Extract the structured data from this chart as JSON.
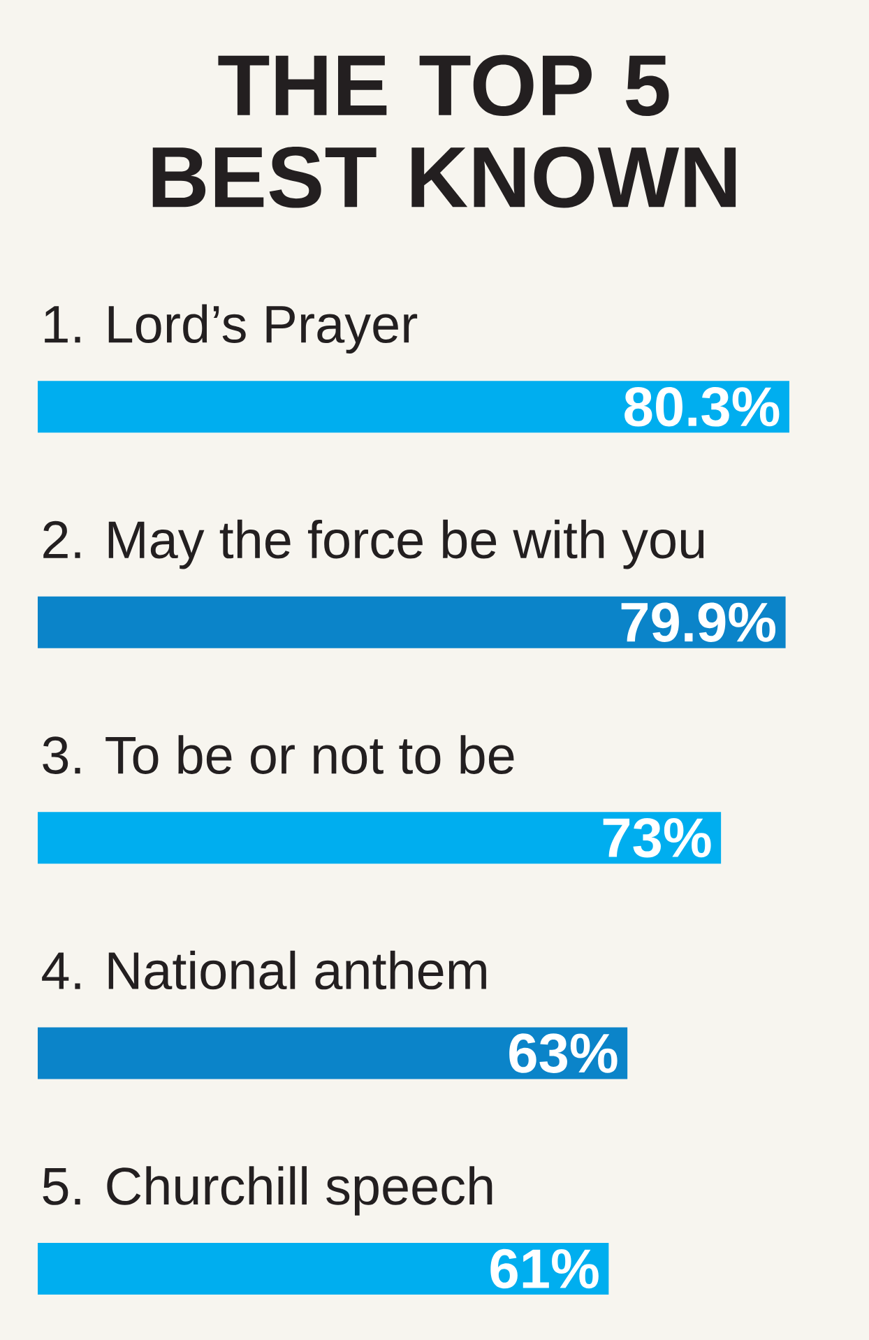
{
  "chart_data": {
    "type": "bar",
    "orientation": "horizontal",
    "title": "THE TOP 5 BEST KNOWN",
    "categories": [
      "1. Lord’s Prayer",
      "2. May the force be with you",
      "3. To be or not to be",
      "4. National anthem",
      "5. Churchill speech"
    ],
    "values": [
      80.3,
      79.9,
      73,
      63,
      61
    ],
    "colors": [
      "#00aeef",
      "#0b84c9",
      "#00aeef",
      "#0b84c9",
      "#00aeef"
    ],
    "value_labels": [
      "80.3%",
      "79.9%",
      "73%",
      "63%",
      "61%"
    ]
  }
}
